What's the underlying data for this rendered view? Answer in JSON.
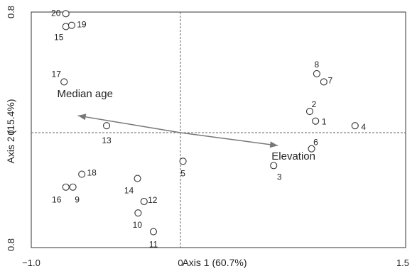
{
  "chart_data": {
    "type": "scatter",
    "title": "",
    "xlabel": "Axis 1 (60.7%)",
    "ylabel": "Axis 2 (15.4%)",
    "xlim": [
      -1.0,
      1.5
    ],
    "ylim": [
      -0.8,
      0.8
    ],
    "x_tick_labels": [
      "−1.0",
      "0",
      "1.5"
    ],
    "y_tick_labels": [
      "0.8",
      "0",
      "0.8"
    ],
    "grid": false,
    "reference_lines": {
      "x": 0,
      "y": 0,
      "style": "dashed"
    },
    "points": [
      {
        "label": "1",
        "x": 0.9,
        "y": 0.077
      },
      {
        "label": "2",
        "x": 0.861,
        "y": 0.141
      },
      {
        "label": "3",
        "x": 0.621,
        "y": -0.229
      },
      {
        "label": "4",
        "x": 1.163,
        "y": 0.046
      },
      {
        "label": "5",
        "x": 0.017,
        "y": -0.199
      },
      {
        "label": "6",
        "x": 0.873,
        "y": -0.112
      },
      {
        "label": "7",
        "x": 0.955,
        "y": 0.337
      },
      {
        "label": "8",
        "x": 0.908,
        "y": 0.391
      },
      {
        "label": "9",
        "x": -0.721,
        "y": -0.379
      },
      {
        "label": "10",
        "x": -0.284,
        "y": -0.559
      },
      {
        "label": "11",
        "x": -0.181,
        "y": -0.689
      },
      {
        "label": "12",
        "x": -0.244,
        "y": -0.479
      },
      {
        "label": "13",
        "x": -0.495,
        "y": 0.046
      },
      {
        "label": "14",
        "x": -0.288,
        "y": -0.319
      },
      {
        "label": "15",
        "x": -0.768,
        "y": 0.704
      },
      {
        "label": "16",
        "x": -0.768,
        "y": -0.379
      },
      {
        "label": "17",
        "x": -0.78,
        "y": 0.337
      },
      {
        "label": "18",
        "x": -0.661,
        "y": -0.289
      },
      {
        "label": "19",
        "x": -0.729,
        "y": 0.712
      },
      {
        "label": "20",
        "x": -0.768,
        "y": 0.789
      }
    ],
    "vectors": [
      {
        "label": "Median age",
        "x": -0.687,
        "y": 0.113
      },
      {
        "label": "Elevation",
        "x": 0.649,
        "y": -0.09
      }
    ]
  }
}
